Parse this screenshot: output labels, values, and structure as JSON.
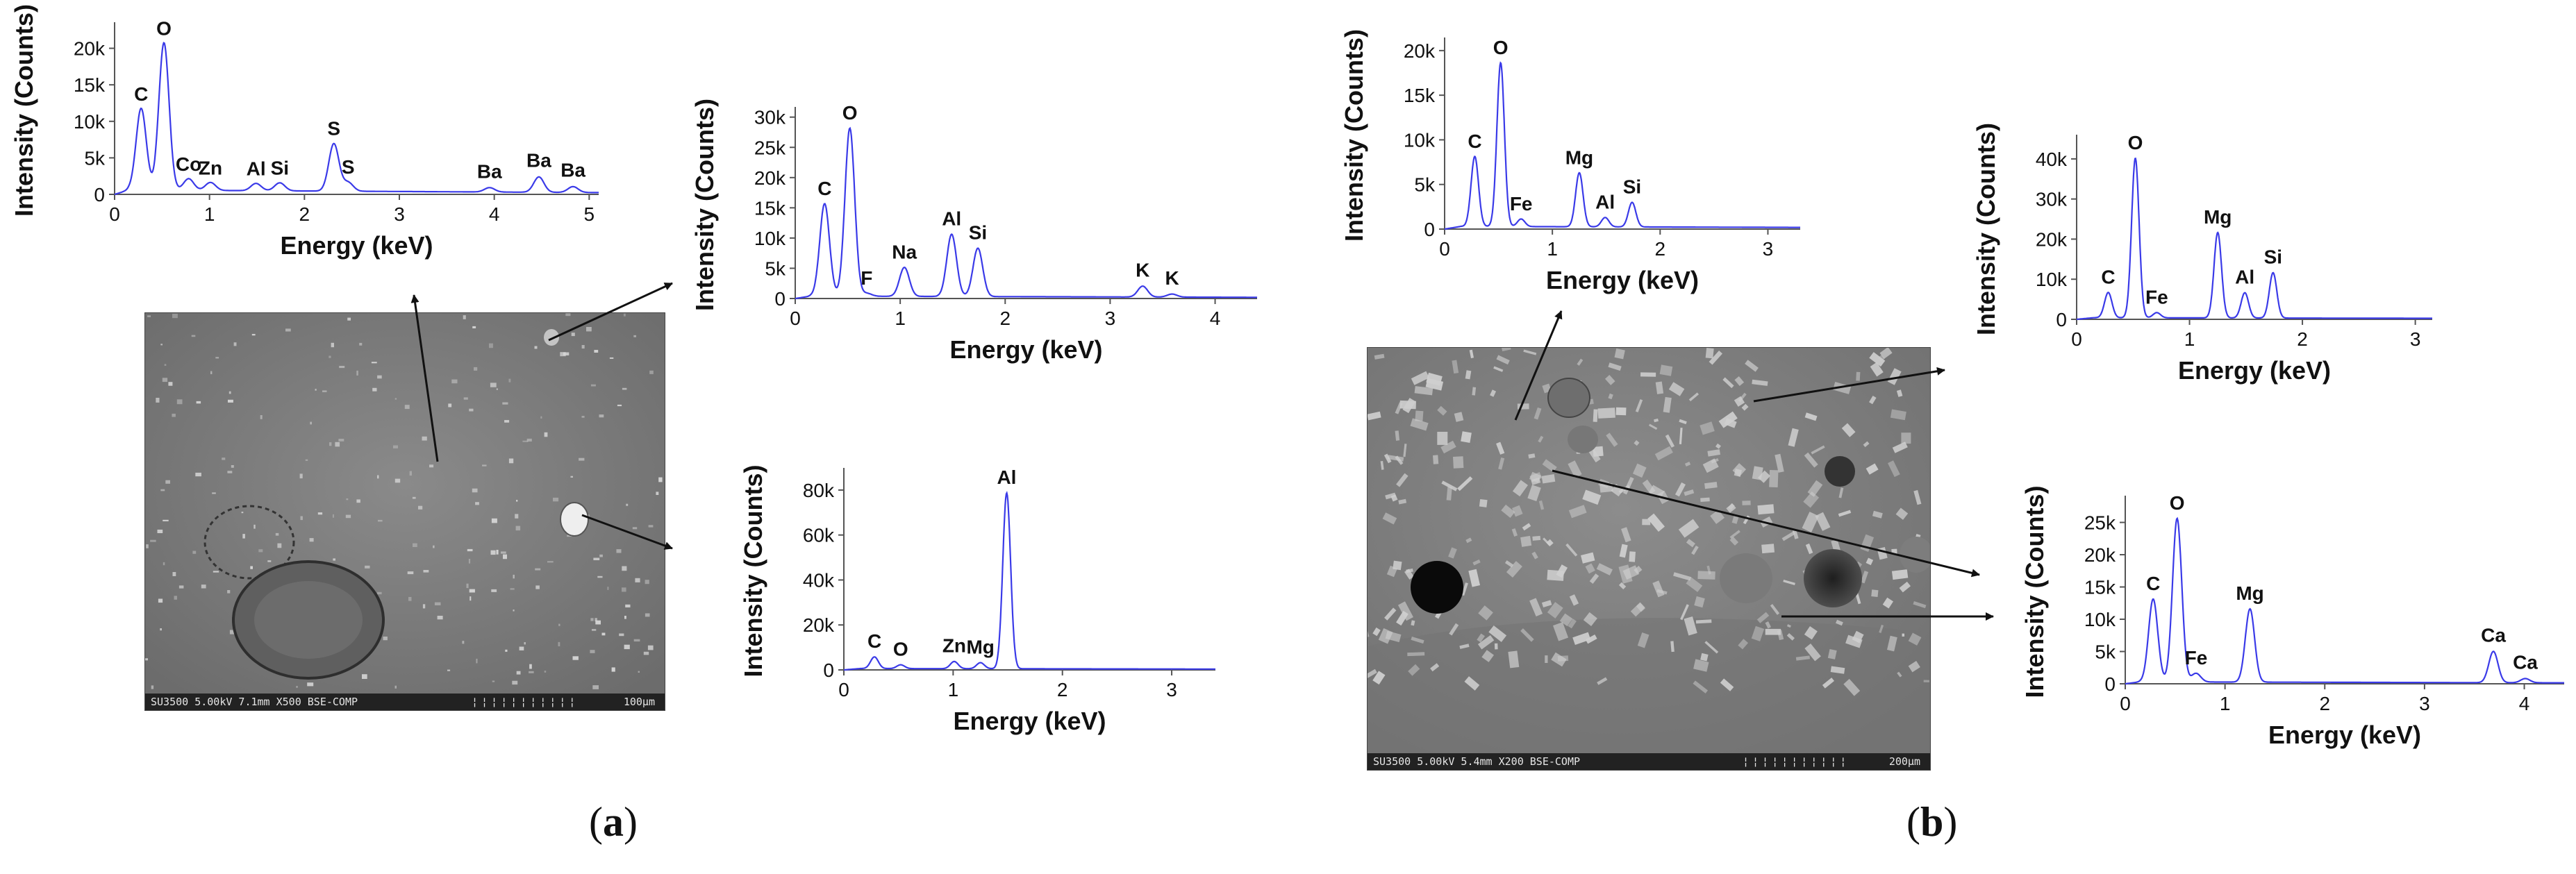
{
  "figure": {
    "caption_a": {
      "open": "(",
      "letter": "a",
      "close": ")"
    },
    "caption_b": {
      "open": "(",
      "letter": "b",
      "close": ")"
    }
  },
  "sem_images": [
    {
      "id": "sem-a",
      "label": "SU3500 5.00kV 7.1mm X500 BSE-COMP",
      "scale": "100µm"
    },
    {
      "id": "sem-b",
      "label": "SU3500 5.00kV 5.4mm X200 BSE-COMP",
      "scale": "200µm"
    }
  ],
  "colors": {
    "line": "#3a3ae8",
    "axis": "#555555",
    "text": "#111111"
  },
  "chart_data": [
    {
      "id": "a1",
      "type": "line",
      "xlabel": "Energy (keV)",
      "ylabel": "Intensity (Counts)",
      "xlim": [
        0,
        5.1
      ],
      "ylim": [
        0,
        23000
      ],
      "xticks": [
        0,
        1,
        2,
        3,
        4,
        5
      ],
      "yticks": [
        0,
        5000,
        10000,
        15000,
        20000
      ],
      "ytick_labels": [
        "0",
        "5k",
        "10k",
        "15k",
        "20k"
      ],
      "baseline": 600,
      "peaks": [
        {
          "label": "C",
          "x": 0.28,
          "y": 11500
        },
        {
          "label": "O",
          "x": 0.52,
          "y": 20500
        },
        {
          "label": "Co",
          "x": 0.78,
          "y": 1900
        },
        {
          "label": "Zn",
          "x": 1.01,
          "y": 1400
        },
        {
          "label": "Al",
          "x": 1.49,
          "y": 1300
        },
        {
          "label": "Si",
          "x": 1.74,
          "y": 1400
        },
        {
          "label": "S",
          "x": 2.31,
          "y": 6800
        },
        {
          "label": "S",
          "x": 2.46,
          "y": 1500
        },
        {
          "label": "Ba",
          "x": 3.95,
          "y": 900
        },
        {
          "label": "Ba",
          "x": 4.47,
          "y": 2400
        },
        {
          "label": "Ba",
          "x": 4.83,
          "y": 1100
        }
      ]
    },
    {
      "id": "a2",
      "type": "line",
      "xlabel": "Energy (keV)",
      "ylabel": "Intensity (Counts)",
      "xlim": [
        0,
        4.4
      ],
      "ylim": [
        0,
        31000
      ],
      "xticks": [
        0,
        1,
        2,
        3,
        4
      ],
      "yticks": [
        0,
        5000,
        10000,
        15000,
        20000,
        25000,
        30000
      ],
      "ytick_labels": [
        "0",
        "5k",
        "10k",
        "15k",
        "20k",
        "25k",
        "30k"
      ],
      "baseline": 400,
      "peaks": [
        {
          "label": "C",
          "x": 0.28,
          "y": 15500
        },
        {
          "label": "O",
          "x": 0.52,
          "y": 28000
        },
        {
          "label": "F",
          "x": 0.68,
          "y": 700
        },
        {
          "label": "Na",
          "x": 1.04,
          "y": 5000
        },
        {
          "label": "Al",
          "x": 1.49,
          "y": 10500
        },
        {
          "label": "Si",
          "x": 1.74,
          "y": 8200
        },
        {
          "label": "K",
          "x": 3.31,
          "y": 2000
        },
        {
          "label": "K",
          "x": 3.59,
          "y": 700
        }
      ]
    },
    {
      "id": "a3",
      "type": "line",
      "xlabel": "Energy (keV)",
      "ylabel": "Intensity (Counts)",
      "xlim": [
        0,
        3.4
      ],
      "ylim": [
        0,
        88000
      ],
      "xticks": [
        0,
        1,
        2,
        3
      ],
      "yticks": [
        0,
        20000,
        40000,
        60000,
        80000
      ],
      "ytick_labels": [
        "0",
        "20k",
        "40k",
        "60k",
        "80k"
      ],
      "baseline": 600,
      "peaks": [
        {
          "label": "C",
          "x": 0.28,
          "y": 5500
        },
        {
          "label": "O",
          "x": 0.52,
          "y": 2000
        },
        {
          "label": "Zn",
          "x": 1.01,
          "y": 3500
        },
        {
          "label": "Mg",
          "x": 1.25,
          "y": 3000
        },
        {
          "label": "Al",
          "x": 1.49,
          "y": 78500
        }
      ]
    },
    {
      "id": "b1",
      "type": "line",
      "xlabel": "Energy (keV)",
      "ylabel": "Intensity (Counts)",
      "xlim": [
        0,
        3.3
      ],
      "ylim": [
        0,
        21000
      ],
      "xticks": [
        0,
        1,
        2,
        3
      ],
      "yticks": [
        0,
        5000,
        10000,
        15000,
        20000
      ],
      "ytick_labels": [
        "0",
        "5k",
        "10k",
        "15k",
        "20k"
      ],
      "baseline": 300,
      "peaks": [
        {
          "label": "C",
          "x": 0.28,
          "y": 8000
        },
        {
          "label": "O",
          "x": 0.52,
          "y": 18500
        },
        {
          "label": "Fe",
          "x": 0.71,
          "y": 1000
        },
        {
          "label": "Mg",
          "x": 1.25,
          "y": 6200
        },
        {
          "label": "Al",
          "x": 1.49,
          "y": 1200
        },
        {
          "label": "Si",
          "x": 1.74,
          "y": 2900
        }
      ]
    },
    {
      "id": "b2",
      "type": "line",
      "xlabel": "Energy (keV)",
      "ylabel": "Intensity (Counts)",
      "xlim": [
        0,
        3.15
      ],
      "ylim": [
        0,
        45000
      ],
      "xticks": [
        0,
        1,
        2,
        3
      ],
      "yticks": [
        0,
        10000,
        20000,
        30000,
        40000
      ],
      "ytick_labels": [
        "0",
        "10k",
        "20k",
        "30k",
        "40k"
      ],
      "baseline": 400,
      "peaks": [
        {
          "label": "C",
          "x": 0.28,
          "y": 6500
        },
        {
          "label": "O",
          "x": 0.52,
          "y": 40000
        },
        {
          "label": "Fe",
          "x": 0.71,
          "y": 1500
        },
        {
          "label": "Mg",
          "x": 1.25,
          "y": 21500
        },
        {
          "label": "Al",
          "x": 1.49,
          "y": 6500
        },
        {
          "label": "Si",
          "x": 1.74,
          "y": 11500
        }
      ]
    },
    {
      "id": "b3",
      "type": "line",
      "xlabel": "Energy (keV)",
      "ylabel": "Intensity (Counts)",
      "xlim": [
        0,
        4.4
      ],
      "ylim": [
        0,
        28500
      ],
      "xticks": [
        0,
        1,
        2,
        3,
        4
      ],
      "yticks": [
        0,
        5000,
        10000,
        15000,
        20000,
        25000
      ],
      "ytick_labels": [
        "0",
        "5k",
        "10k",
        "15k",
        "20k",
        "25k"
      ],
      "baseline": 300,
      "peaks": [
        {
          "label": "C",
          "x": 0.28,
          "y": 13000
        },
        {
          "label": "O",
          "x": 0.52,
          "y": 25500
        },
        {
          "label": "Fe",
          "x": 0.71,
          "y": 1500
        },
        {
          "label": "Mg",
          "x": 1.25,
          "y": 11500
        },
        {
          "label": "Ca",
          "x": 3.69,
          "y": 5000
        },
        {
          "label": "Ca",
          "x": 4.01,
          "y": 800
        }
      ]
    }
  ]
}
